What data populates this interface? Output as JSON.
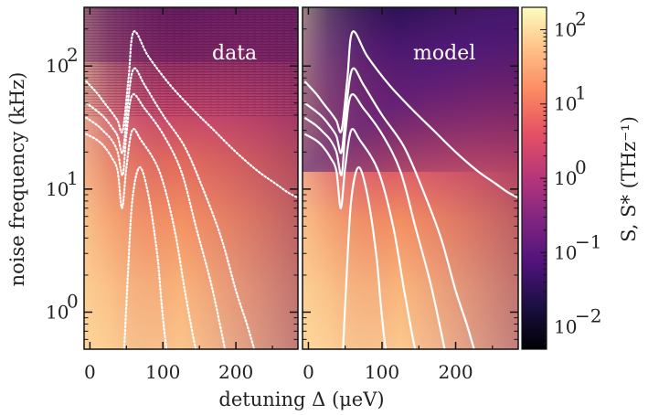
{
  "chart_data": {
    "type": "heatmap",
    "xlabel": "detuning Δ (μeV)",
    "ylabel": "noise frequency (kHz)",
    "xlim": [
      -8,
      285
    ],
    "ylim": [
      0.5,
      300
    ],
    "y_scale": "log",
    "x_ticks": [
      "0",
      "100",
      "200"
    ],
    "x_tick_values": [
      0,
      100,
      200
    ],
    "y_ticks": [
      "10",
      "10",
      "10"
    ],
    "y_tick_exponents": [
      "0",
      "1",
      "2"
    ],
    "y_tick_values": [
      1,
      10,
      100
    ],
    "panels": [
      {
        "label": "data"
      },
      {
        "label": "model"
      }
    ],
    "colorbar": {
      "label": "S, S* (THz⁻¹)",
      "scale": "log",
      "range": [
        0.005,
        200
      ],
      "ticks": [
        "10",
        "10",
        "10",
        "10",
        "10"
      ],
      "tick_exponents": [
        "−2",
        "−1",
        "0",
        "1",
        "2"
      ],
      "tick_values": [
        0.01,
        0.1,
        1,
        10,
        100
      ],
      "colormap": "magma"
    },
    "contours": [
      {
        "x": [
          -5,
          10,
          20,
          30,
          38,
          45,
          53,
          60,
          80,
          110,
          140,
          170,
          200,
          230,
          255,
          270,
          285
        ],
        "y": [
          75,
          60,
          50,
          42,
          36,
          30,
          80,
          190,
          120,
          70,
          45,
          30,
          20,
          14,
          11,
          9.5,
          8.5
        ]
      },
      {
        "x": [
          -5,
          10,
          20,
          30,
          38,
          45,
          52,
          60,
          75,
          100,
          130,
          155,
          180,
          200,
          215,
          225
        ],
        "y": [
          50,
          43,
          38,
          32,
          27,
          20,
          50,
          95,
          70,
          40,
          22,
          10,
          4,
          1.5,
          0.8,
          0.5
        ]
      },
      {
        "x": [
          -5,
          10,
          20,
          30,
          38,
          45,
          50,
          58,
          75,
          100,
          125,
          145,
          165,
          178,
          185
        ],
        "y": [
          38,
          33,
          29,
          25,
          20,
          13,
          28,
          58,
          45,
          28,
          14,
          5,
          1.8,
          0.8,
          0.5
        ]
      },
      {
        "x": [
          -5,
          10,
          20,
          30,
          38,
          44,
          50,
          58,
          70,
          95,
          115,
          130,
          140,
          145
        ],
        "y": [
          28,
          25,
          22,
          18,
          14,
          7,
          15,
          30,
          25,
          14,
          5,
          1.5,
          0.7,
          0.5
        ]
      },
      {
        "x": [
          47,
          52,
          58,
          68,
          80,
          92,
          98,
          102,
          105
        ],
        "y": [
          0.5,
          2,
          8,
          15,
          9,
          3,
          1.2,
          0.7,
          0.5
        ]
      }
    ]
  }
}
